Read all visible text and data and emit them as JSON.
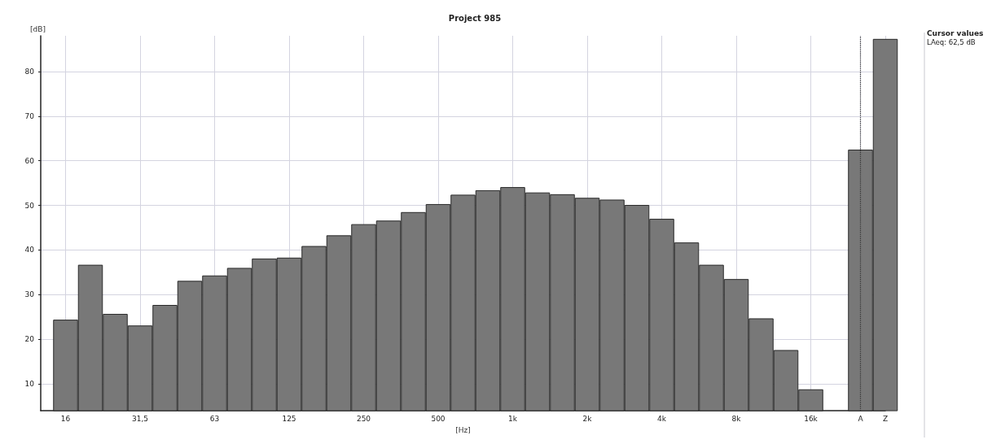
{
  "chart_data": {
    "type": "bar",
    "title": "Project 985",
    "xlabel": "[Hz]",
    "ylabel": "[dB]",
    "categories": [
      null,
      "16",
      null,
      null,
      "31,5",
      null,
      null,
      "63",
      null,
      null,
      "125",
      null,
      null,
      "250",
      null,
      null,
      "500",
      null,
      null,
      "1k",
      null,
      null,
      "2k",
      null,
      null,
      "4k",
      null,
      null,
      "8k",
      null,
      null,
      "16k",
      null,
      "A",
      "Z"
    ],
    "series": [
      {
        "color": "#787878",
        "values": [
          null,
          24.4,
          36.7,
          25.7,
          23.1,
          27.7,
          33.1,
          34.3,
          36.0,
          38.1,
          38.3,
          40.9,
          43.3,
          45.8,
          46.6,
          48.5,
          50.3,
          52.4,
          53.4,
          54.1,
          52.9,
          52.5,
          51.7,
          51.3,
          50.1,
          47.0,
          41.7,
          36.7,
          33.5,
          24.7,
          17.6,
          8.8,
          null,
          62.5,
          87.3
        ]
      }
    ],
    "ylim": [
      4,
      88
    ],
    "yticks": [
      10,
      20,
      30,
      40,
      50,
      60,
      70,
      80
    ],
    "grid": true,
    "ref_lines": [
      {
        "axis": "x",
        "value": "A",
        "color": "#333333",
        "line_style": "dotted"
      }
    ],
    "annotations": [
      "Cursor values",
      "LAeq: 62,5 dB"
    ]
  }
}
